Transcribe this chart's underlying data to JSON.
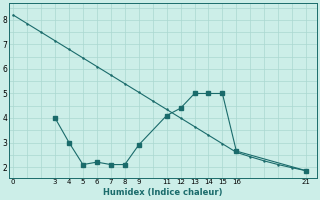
{
  "xlabel": "Humidex (Indice chaleur)",
  "bg_color": "#cceee8",
  "line_color": "#1a6b6b",
  "grid_color": "#aad8d0",
  "line1_x": [
    0,
    1,
    2,
    3,
    4,
    5,
    6,
    7,
    8,
    9,
    10,
    11,
    12,
    13,
    14,
    15,
    16,
    17,
    18,
    19,
    20,
    21
  ],
  "line1_y": [
    8.2,
    7.85,
    7.5,
    7.15,
    6.8,
    6.45,
    6.1,
    5.75,
    5.4,
    5.05,
    4.7,
    4.35,
    4.0,
    3.65,
    3.3,
    2.95,
    2.6,
    2.42,
    2.25,
    2.1,
    1.97,
    1.85
  ],
  "line2_x": [
    3,
    4,
    5,
    6,
    7,
    8,
    9,
    11,
    12,
    13,
    14,
    15,
    16,
    21
  ],
  "line2_y": [
    4.0,
    3.0,
    2.1,
    2.2,
    2.1,
    2.1,
    2.9,
    4.1,
    4.4,
    5.0,
    5.0,
    5.0,
    2.65,
    1.85
  ],
  "xticks": [
    0,
    3,
    4,
    5,
    6,
    7,
    8,
    9,
    11,
    12,
    13,
    14,
    15,
    16,
    21
  ],
  "yticks": [
    2,
    3,
    4,
    5,
    6,
    7,
    8
  ],
  "xlim": [
    -0.3,
    21.8
  ],
  "ylim": [
    1.55,
    8.7
  ]
}
